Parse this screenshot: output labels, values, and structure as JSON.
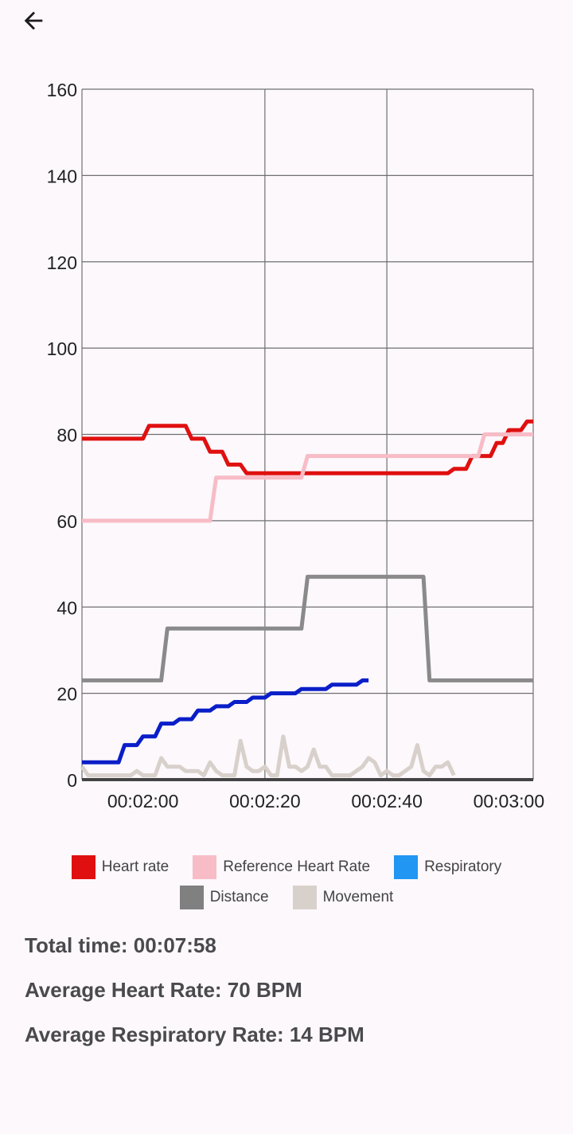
{
  "header": {
    "back_icon": "arrow-left-icon"
  },
  "chart_data": {
    "type": "line",
    "title": "",
    "xlabel": "",
    "ylabel": "",
    "ylim": [
      0,
      160
    ],
    "xlim": [
      110,
      184
    ],
    "yticks": [
      0,
      20,
      40,
      60,
      80,
      100,
      120,
      140,
      160
    ],
    "xticks": [
      {
        "t": 120,
        "label": "00:02:00"
      },
      {
        "t": 140,
        "label": "00:02:20"
      },
      {
        "t": 160,
        "label": "00:02:40"
      },
      {
        "t": 180,
        "label": "00:03:00"
      }
    ],
    "x_unit": "seconds",
    "grid": true,
    "legend_position": "bottom",
    "series": [
      {
        "name": "Heart rate",
        "color": "#e01010",
        "points": [
          [
            110,
            79
          ],
          [
            120,
            79
          ],
          [
            121,
            82
          ],
          [
            127,
            82
          ],
          [
            128,
            79
          ],
          [
            130,
            79
          ],
          [
            131,
            76
          ],
          [
            133,
            76
          ],
          [
            134,
            73
          ],
          [
            136,
            73
          ],
          [
            137,
            71
          ],
          [
            145,
            71
          ],
          [
            170,
            71
          ],
          [
            171,
            72
          ],
          [
            173,
            72
          ],
          [
            174,
            75
          ],
          [
            177,
            75
          ],
          [
            178,
            78
          ],
          [
            179,
            78
          ],
          [
            180,
            81
          ],
          [
            182,
            81
          ],
          [
            183,
            83
          ],
          [
            184,
            83
          ]
        ]
      },
      {
        "name": "Reference Heart Rate",
        "color": "#f8bcc6",
        "points": [
          [
            110,
            60
          ],
          [
            131,
            60
          ],
          [
            132,
            70
          ],
          [
            146,
            70
          ],
          [
            147,
            75
          ],
          [
            161,
            75
          ],
          [
            175,
            75
          ],
          [
            176,
            80
          ],
          [
            184,
            80
          ]
        ]
      },
      {
        "name": "Respiratory",
        "color": "#0a1ec8",
        "legend_color": "#2196f3",
        "points": [
          [
            110,
            4
          ],
          [
            116,
            4
          ],
          [
            117,
            8
          ],
          [
            119,
            8
          ],
          [
            120,
            10
          ],
          [
            122,
            10
          ],
          [
            123,
            13
          ],
          [
            125,
            13
          ],
          [
            126,
            14
          ],
          [
            128,
            14
          ],
          [
            129,
            16
          ],
          [
            131,
            16
          ],
          [
            132,
            17
          ],
          [
            134,
            17
          ],
          [
            135,
            18
          ],
          [
            137,
            18
          ],
          [
            138,
            19
          ],
          [
            140,
            19
          ],
          [
            141,
            20
          ],
          [
            145,
            20
          ],
          [
            146,
            21
          ],
          [
            150,
            21
          ],
          [
            151,
            22
          ],
          [
            155,
            22
          ],
          [
            156,
            23
          ],
          [
            157,
            23
          ]
        ]
      },
      {
        "name": "Distance",
        "color": "#8a8a8a",
        "points": [
          [
            110,
            23
          ],
          [
            123,
            23
          ],
          [
            124,
            35
          ],
          [
            146,
            35
          ],
          [
            147,
            47
          ],
          [
            166,
            47
          ],
          [
            167,
            23
          ],
          [
            184,
            23
          ]
        ]
      },
      {
        "name": "Movement",
        "color": "#d8d0ca",
        "points": [
          [
            110,
            3
          ],
          [
            111,
            1
          ],
          [
            115,
            1
          ],
          [
            118,
            1
          ],
          [
            119,
            2
          ],
          [
            120,
            1
          ],
          [
            122,
            1
          ],
          [
            123,
            5
          ],
          [
            124,
            3
          ],
          [
            126,
            3
          ],
          [
            127,
            2
          ],
          [
            129,
            2
          ],
          [
            130,
            1
          ],
          [
            131,
            4
          ],
          [
            132,
            2
          ],
          [
            133,
            1
          ],
          [
            135,
            1
          ],
          [
            136,
            9
          ],
          [
            137,
            3
          ],
          [
            138,
            2
          ],
          [
            139,
            2
          ],
          [
            140,
            3
          ],
          [
            141,
            1
          ],
          [
            142,
            1
          ],
          [
            143,
            10
          ],
          [
            144,
            3
          ],
          [
            145,
            3
          ],
          [
            146,
            2
          ],
          [
            147,
            3
          ],
          [
            148,
            7
          ],
          [
            149,
            3
          ],
          [
            150,
            3
          ],
          [
            151,
            1
          ],
          [
            154,
            1
          ],
          [
            156,
            3
          ],
          [
            157,
            5
          ],
          [
            158,
            4
          ],
          [
            159,
            1
          ],
          [
            160,
            2
          ],
          [
            161,
            1
          ],
          [
            162,
            1
          ],
          [
            163,
            2
          ],
          [
            164,
            3
          ],
          [
            165,
            8
          ],
          [
            166,
            2
          ],
          [
            167,
            1
          ],
          [
            168,
            3
          ],
          [
            169,
            3
          ],
          [
            170,
            4
          ],
          [
            171,
            1
          ]
        ]
      }
    ]
  },
  "legend": {
    "row1": [
      {
        "label": "Heart rate",
        "color": "#e01010"
      },
      {
        "label": "Reference Heart Rate",
        "color": "#f8bcc6"
      },
      {
        "label": "Respiratory",
        "color": "#2196f3"
      }
    ],
    "row2": [
      {
        "label": "Distance",
        "color": "#808080"
      },
      {
        "label": "Movement",
        "color": "#d8d0ca"
      }
    ]
  },
  "stats": {
    "total_time": "Total time: 00:07:58",
    "avg_heart_rate": "Average Heart Rate: 70 BPM",
    "avg_resp_rate": "Average Respiratory Rate: 14 BPM"
  }
}
